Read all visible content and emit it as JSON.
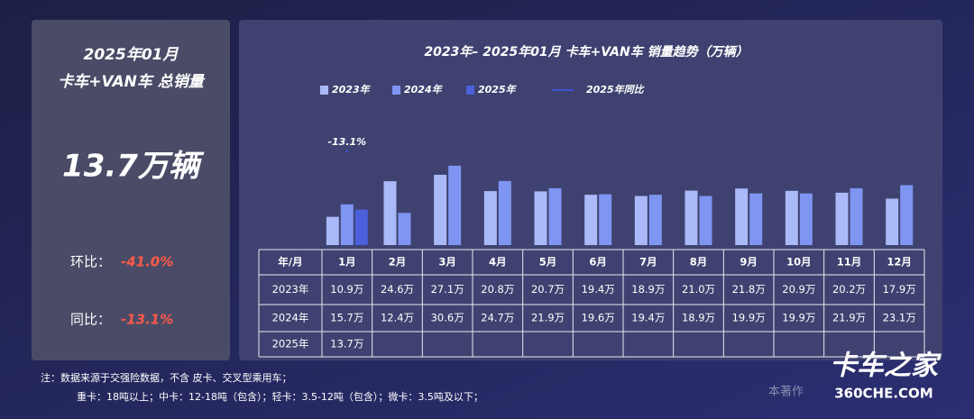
{
  "left_panel": {
    "title_line1": "2025年01月",
    "title_line2": "卡车+VAN车 总销量",
    "total": "13.7万辆",
    "mom_label": "环比：",
    "mom_value": "-41.0%",
    "yoy_label": "同比：",
    "yoy_value": "-13.1%"
  },
  "chart_data": {
    "type": "bar",
    "title": "2023年– 2025年01月 卡车+VAN车 销量趋势（万辆）",
    "table_header": "年/月",
    "categories": [
      "1月",
      "2月",
      "3月",
      "4月",
      "5月",
      "6月",
      "7月",
      "8月",
      "9月",
      "10月",
      "11月",
      "12月"
    ],
    "series": [
      {
        "name": "2023年",
        "color": "#aab9f7",
        "values": [
          10.9,
          24.6,
          27.1,
          20.8,
          20.7,
          19.4,
          18.9,
          21.0,
          21.8,
          20.9,
          20.2,
          17.9
        ],
        "value_labels": [
          "10.9万",
          "24.6万",
          "27.1万",
          "20.8万",
          "20.7万",
          "19.4万",
          "18.9万",
          "21.0万",
          "21.8万",
          "20.9万",
          "20.2万",
          "17.9万"
        ]
      },
      {
        "name": "2024年",
        "color": "#7f95f2",
        "values": [
          15.7,
          12.4,
          30.6,
          24.7,
          21.9,
          19.6,
          19.4,
          18.9,
          19.9,
          19.9,
          21.9,
          23.1
        ],
        "value_labels": [
          "15.7万",
          "12.4万",
          "30.6万",
          "24.7万",
          "21.9万",
          "19.6万",
          "19.4万",
          "18.9万",
          "19.9万",
          "19.9万",
          "21.9万",
          "23.1万"
        ]
      },
      {
        "name": "2025年",
        "color": "#4b60da",
        "values": [
          13.7,
          null,
          null,
          null,
          null,
          null,
          null,
          null,
          null,
          null,
          null,
          null
        ],
        "value_labels": [
          "13.7万",
          null,
          null,
          null,
          null,
          null,
          null,
          null,
          null,
          null,
          null,
          null
        ]
      },
      {
        "name": "2025年同比",
        "color": "#3c50d2",
        "axis": "y2",
        "values": [
          -13.1,
          null,
          null,
          null,
          null,
          null,
          null,
          null,
          null,
          null,
          null,
          null
        ],
        "value_labels": [
          "-13.1%",
          null,
          null,
          null,
          null,
          null,
          null,
          null,
          null,
          null,
          null,
          null
        ]
      }
    ]
  },
  "footnote": {
    "line1": "注：数据来源于交强险数据，不含 皮卡、交叉型乘用车；",
    "line2": "重卡：18吨以上；中卡：12-18吨（包含）；轻卡：3.5-12吨（包含）；微卡：3.5吨及以下；"
  },
  "logo": {
    "name": "卡车之家",
    "site": "360CHE.COM",
    "notice": "本著作"
  }
}
